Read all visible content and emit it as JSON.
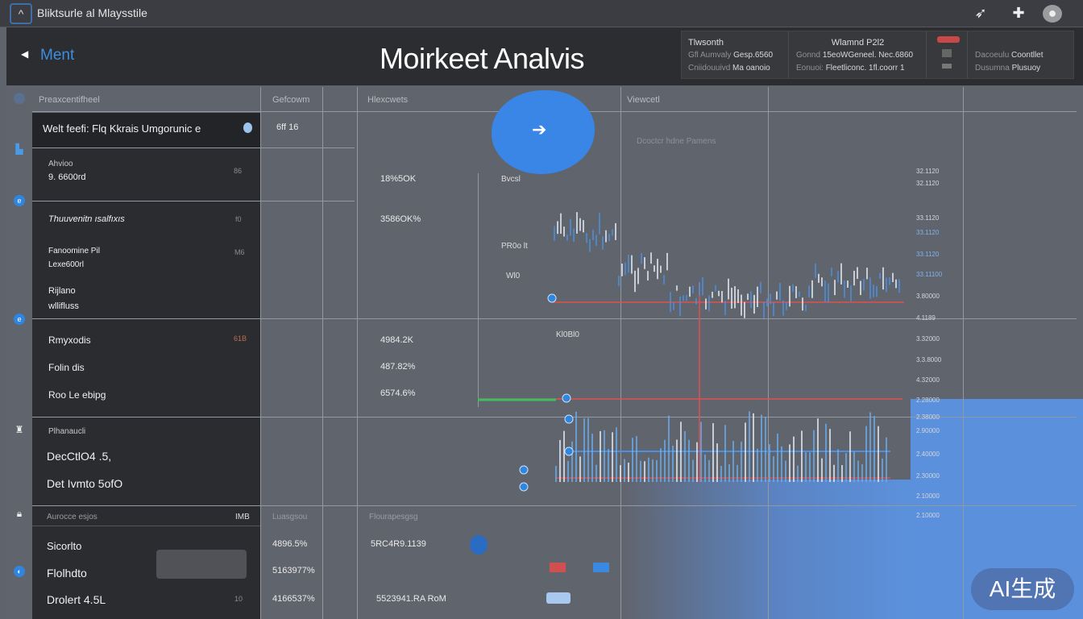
{
  "titlebar": {
    "title": "Bliktsurle al Mlaysstile",
    "icons": [
      "collapse-chevron-icon",
      "cursor-icon",
      "tool-icon",
      "profile-icon"
    ]
  },
  "header": {
    "menu_label": "Ment",
    "title": "Moirkeet Analvis",
    "info": [
      {
        "heading": "Tlwsonth",
        "line1_label": "Gfl Aumvaly",
        "line1_value": "Gesp.6560",
        "line2_label": "Cniidouuivd",
        "line2_value": "Ma oanoio"
      },
      {
        "heading": "Wlamnd P2l2",
        "line1_label": "Gonnd",
        "line1_value": "15eoWGeneel. Nec.6860",
        "line2_label": "Eonuoi:",
        "line2_value": "Fleetliconc. 1fl.coorr 1"
      },
      {
        "heading": "",
        "line1_label": "Dacoeulu",
        "line1_value": "Coontllet",
        "line2_label": "Dusumna",
        "line2_value": "Plusuoy"
      }
    ]
  },
  "columns": {
    "c1": "Preaxcentifheel",
    "c2": "Gefcowm",
    "c3": "Hlexcwets",
    "c4": "Viewcetl"
  },
  "left_rows": {
    "r1": "Welt feefi: Flq Kkrais Umgorunic e",
    "r1_val": "6ff 16",
    "r2_small": "Ahvioo",
    "r2": "9. 6600rd",
    "r2_badge": "86",
    "r2_val": "18%5OK",
    "r3": "Thuuvenitn ısalfıxıs",
    "r3_badge": "f0",
    "r3_val": "3586OK%",
    "r4a": "Fanoomine Pil",
    "r4b": "Lexe600rl",
    "r4_badge": "M6",
    "r4c": "Rijlano",
    "r4d": "wllifluss",
    "r5a": "Rmyxodis",
    "r5b": "Folin dis",
    "r5c": "Roo Le ebipg",
    "r5_badge": "61B",
    "r5a_val": "4984.2K",
    "r5b_val": "487.82%",
    "r5c_val": "6574.6%",
    "r6_small": "Plhanaucli",
    "r6a": "DecCtlO4 .5,",
    "r6b": "Det Ivmto 5ofO",
    "r7_hdr1": "Aurocce esjos",
    "r7_hdr_badge": "IMB",
    "r7_hdr2": "Luasgsou",
    "r7_hdr3": "Flourapesgsg",
    "r7a": "Sicorlto",
    "r7a_val": "4896.5%",
    "r7a_val2": "5RC4R9.1139",
    "r7b": "Flolhdto",
    "r7b_val": "5163977%",
    "r7c": "Drolert 4.5L",
    "r7c_badge": "10",
    "r7c_val": "4166537%",
    "r7c_val2": "5523941.RA RoM"
  },
  "chart": {
    "label_top": "Bvcsl",
    "label_mid": "Wl0",
    "label_mid2": "PR0o lt",
    "label_low": "Kl0Bl0",
    "faint_title": "Dcoctcr hdne Pamens",
    "axis": [
      "32.1120",
      "32.1120",
      "33.1120",
      "33.1120",
      "33.1120",
      "33.11100",
      "3.80000",
      "4.1189",
      "3.32000",
      "3.3.8000",
      "4.32000",
      "2.28000",
      "2.38000",
      "2.90000",
      "2.40000",
      "2.30000",
      "2.10000",
      "2.10000"
    ],
    "colors": {
      "up": "#4a90e2",
      "down": "#e05050",
      "grid": "#8a8e96"
    }
  },
  "badge": "AI生成"
}
